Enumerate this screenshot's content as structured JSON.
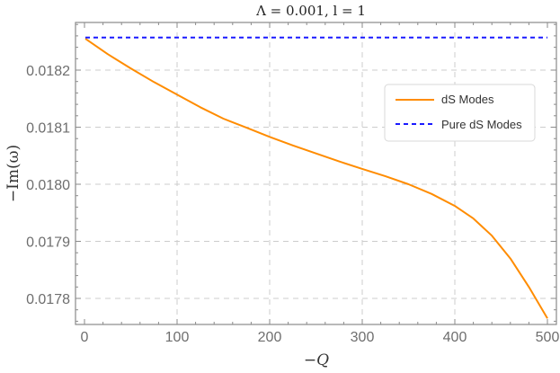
{
  "chart_data": {
    "type": "line",
    "title": "Λ = 0.001, l = 1",
    "xlabel": "−Q",
    "ylabel": "−Im(ω)",
    "xlim": [
      -8,
      510
    ],
    "ylim": [
      0.017767,
      0.01831
    ],
    "xticks": [
      0,
      100,
      200,
      300,
      400,
      500
    ],
    "xtick_labels": [
      "0",
      "100",
      "200",
      "300",
      "400",
      "500"
    ],
    "yticks": [
      0.0178,
      0.0179,
      0.018,
      0.0181,
      0.0182
    ],
    "ytick_labels": [
      "0.0178",
      "0.0179",
      "0.0180",
      "0.0181",
      "0.0182"
    ],
    "grid": true,
    "legend_position": "upper right (inside)",
    "series": [
      {
        "name": "dS Modes",
        "color": "#ff8c00",
        "style": "solid",
        "x": [
          1,
          25,
          50,
          75,
          100,
          125,
          150,
          175,
          200,
          225,
          250,
          275,
          300,
          325,
          350,
          375,
          400,
          420,
          440,
          460,
          480,
          500
        ],
        "values": [
          0.018255,
          0.018228,
          0.018203,
          0.018179,
          0.018157,
          0.018135,
          0.018115,
          0.018099,
          0.018083,
          0.018068,
          0.018054,
          0.01804,
          0.018027,
          0.018014,
          0.018,
          0.017983,
          0.017962,
          0.01794,
          0.01791,
          0.01787,
          0.01782,
          0.017765
        ]
      },
      {
        "name": "Pure dS Modes",
        "color": "#1a1aff",
        "style": "dashed",
        "x": [
          1,
          500
        ],
        "values": [
          0.018257,
          0.018257
        ]
      }
    ]
  },
  "legend": {
    "items": [
      {
        "label": "dS Modes",
        "color": "#ff8c00",
        "style": "solid"
      },
      {
        "label": "Pure dS Modes",
        "color": "#1a1aff",
        "style": "dashed"
      }
    ]
  }
}
